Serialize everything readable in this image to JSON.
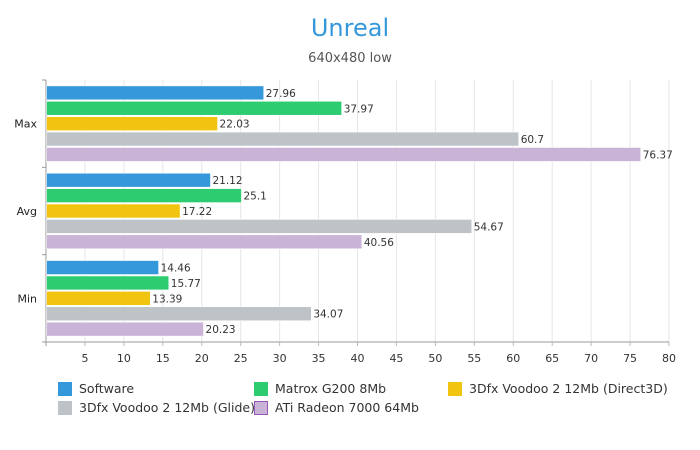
{
  "chart_data": {
    "type": "bar",
    "orientation": "horizontal",
    "title": "Unreal",
    "subtitle": "640x480 low",
    "xlabel": "",
    "ylabel": "",
    "categories": [
      "Max",
      "Avg",
      "Min"
    ],
    "series": [
      {
        "name": "Software",
        "color": "#3498db",
        "values": [
          27.96,
          21.12,
          14.46
        ]
      },
      {
        "name": "Matrox G200 8Mb",
        "color": "#2ecc71",
        "values": [
          37.97,
          25.1,
          15.77
        ]
      },
      {
        "name": "3Dfx Voodoo 2 12Mb (Direct3D)",
        "color": "#f1c40f",
        "values": [
          22.03,
          17.22,
          13.39
        ]
      },
      {
        "name": "3Dfx Voodoo 2 12Mb (Glide)",
        "color": "#bdc3c7",
        "values": [
          60.7,
          54.67,
          34.07
        ]
      },
      {
        "name": "ATi Radeon 7000 64Mb",
        "color": "#c9b3d6",
        "values": [
          76.37,
          40.56,
          20.23
        ]
      }
    ],
    "value_labels": [
      [
        "27.96",
        "21.12",
        "14.46"
      ],
      [
        "37.97",
        "25.1",
        "15.77"
      ],
      [
        "22.03",
        "17.22",
        "13.39"
      ],
      [
        "60.7",
        "54.67",
        "34.07"
      ],
      [
        "76.37",
        "40.56",
        "20.23"
      ]
    ],
    "xlim": [
      0,
      80
    ],
    "xticks": [
      5,
      10,
      15,
      20,
      25,
      30,
      35,
      40,
      45,
      50,
      55,
      60,
      65,
      70,
      75,
      80
    ],
    "grid": true,
    "legend_position": "bottom"
  }
}
